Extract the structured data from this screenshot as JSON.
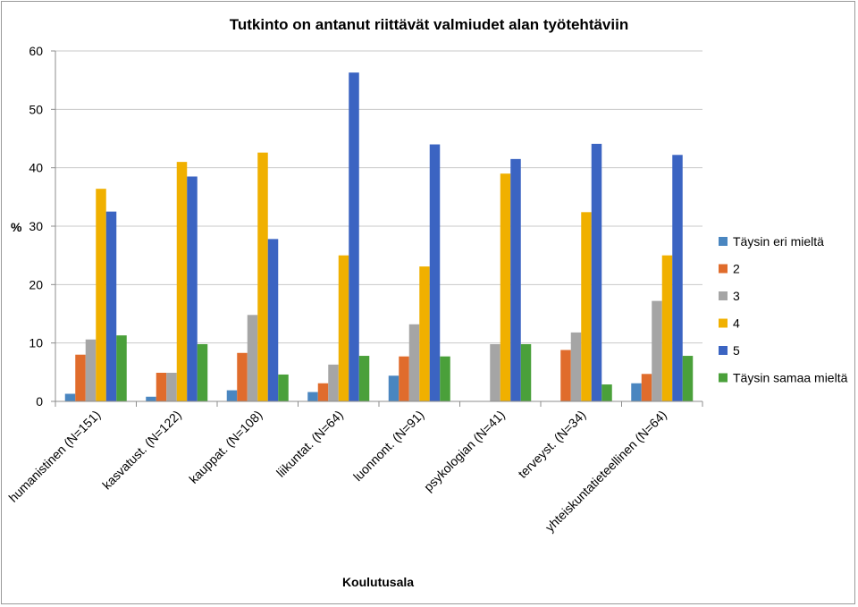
{
  "chart_data": {
    "type": "bar",
    "title": "Tutkinto on antanut riittävät valmiudet alan työtehtäviin",
    "xlabel": "Koulutusala",
    "ylabel": "%",
    "ylim": [
      0,
      60
    ],
    "yticks": [
      0,
      10,
      20,
      30,
      40,
      50,
      60
    ],
    "grid": true,
    "legend": "right",
    "categories": [
      "humanistinen (N=151)",
      "kasvatust. (N=122)",
      "kauppat. (N=108)",
      "liikuntat. (N=64)",
      "luonnont. (N=91)",
      "psykologian (N=41)",
      "terveyst. (N=34)",
      "yhteiskuntatieteellinen (N=64)"
    ],
    "series": [
      {
        "name": "Täysin eri mieltä",
        "color": "#4a86c0",
        "values": [
          1.3,
          0.8,
          1.9,
          1.6,
          4.4,
          0,
          0,
          3.1
        ]
      },
      {
        "name": "2",
        "color": "#e06c2c",
        "values": [
          8.0,
          4.9,
          8.3,
          3.1,
          7.7,
          0,
          8.8,
          4.7
        ]
      },
      {
        "name": "3",
        "color": "#a5a5a5",
        "values": [
          10.6,
          4.9,
          14.8,
          6.3,
          13.2,
          9.8,
          11.8,
          17.2
        ]
      },
      {
        "name": "4",
        "color": "#f0b000",
        "values": [
          36.4,
          41.0,
          42.6,
          25.0,
          23.1,
          39.0,
          32.4,
          25.0
        ]
      },
      {
        "name": "5",
        "color": "#3b64c2",
        "values": [
          32.5,
          38.5,
          27.8,
          56.3,
          44.0,
          41.5,
          44.1,
          42.2
        ]
      },
      {
        "name": "Täysin samaa mieltä",
        "color": "#4aa03a",
        "values": [
          11.3,
          9.8,
          4.6,
          7.8,
          7.7,
          9.8,
          2.9,
          7.8
        ]
      }
    ]
  }
}
